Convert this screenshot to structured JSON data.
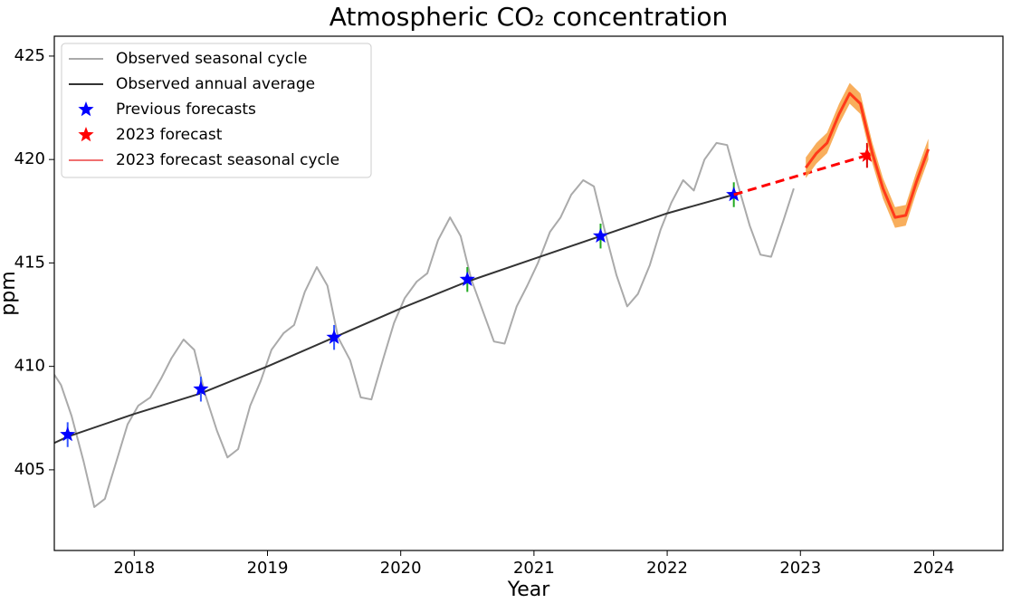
{
  "chart_data": {
    "type": "line",
    "title": "Atmospheric CO₂ concentration",
    "xlabel": "Year",
    "ylabel": "ppm",
    "xlim": [
      2017.4,
      2024.52
    ],
    "ylim": [
      401.1,
      425.96
    ],
    "xticks": [
      2018,
      2019,
      2020,
      2021,
      2022,
      2023,
      2024
    ],
    "yticks": [
      405,
      410,
      415,
      420,
      425
    ],
    "legend": "upper left",
    "series": [
      {
        "name": "Observed seasonal cycle",
        "kind": "line",
        "color": "#aaaaaa",
        "x": [
          2017.4,
          2017.45,
          2017.53,
          2017.62,
          2017.7,
          2017.78,
          2017.87,
          2017.95,
          2018.03,
          2018.12,
          2018.2,
          2018.28,
          2018.37,
          2018.45,
          2018.53,
          2018.62,
          2018.7,
          2018.78,
          2018.87,
          2018.95,
          2019.03,
          2019.12,
          2019.2,
          2019.28,
          2019.37,
          2019.45,
          2019.53,
          2019.62,
          2019.7,
          2019.78,
          2019.87,
          2019.95,
          2020.03,
          2020.12,
          2020.2,
          2020.28,
          2020.37,
          2020.45,
          2020.53,
          2020.62,
          2020.7,
          2020.78,
          2020.87,
          2020.95,
          2021.03,
          2021.12,
          2021.2,
          2021.28,
          2021.37,
          2021.45,
          2021.53,
          2021.62,
          2021.7,
          2021.78,
          2021.87,
          2021.95,
          2022.03,
          2022.12,
          2022.2,
          2022.28,
          2022.37,
          2022.45,
          2022.53,
          2022.62,
          2022.7,
          2022.78,
          2022.87,
          2022.95
        ],
        "values": [
          409.6,
          409.1,
          407.6,
          405.4,
          403.2,
          403.6,
          405.5,
          407.2,
          408.1,
          408.5,
          409.4,
          410.4,
          411.3,
          410.8,
          408.7,
          406.9,
          405.6,
          406.0,
          408.1,
          409.3,
          410.8,
          411.6,
          412.0,
          413.6,
          414.8,
          413.9,
          411.4,
          410.3,
          408.5,
          408.4,
          410.4,
          412.1,
          413.3,
          414.1,
          414.5,
          416.1,
          417.2,
          416.3,
          414.2,
          412.6,
          411.2,
          411.1,
          412.9,
          413.9,
          415.0,
          416.5,
          417.2,
          418.3,
          419.0,
          418.7,
          416.6,
          414.4,
          412.9,
          413.5,
          414.9,
          416.6,
          417.9,
          419.0,
          418.5,
          420.0,
          420.8,
          420.7,
          418.8,
          416.8,
          415.4,
          415.3,
          417.0,
          418.6
        ]
      },
      {
        "name": "Observed annual average",
        "kind": "line",
        "color": "#333333",
        "x": [
          2017.4,
          2017.5,
          2018.0,
          2018.5,
          2019.0,
          2019.5,
          2020.0,
          2020.5,
          2021.0,
          2021.5,
          2022.0,
          2022.5
        ],
        "values": [
          406.3,
          406.6,
          407.7,
          408.7,
          410.0,
          411.4,
          412.8,
          414.1,
          415.2,
          416.3,
          417.4,
          418.3
        ]
      },
      {
        "name": "Previous forecasts",
        "kind": "star",
        "color": "#0000ff",
        "x": [
          2017.5,
          2018.5,
          2019.5,
          2020.5,
          2021.5,
          2022.5
        ],
        "values": [
          406.7,
          408.9,
          411.4,
          414.2,
          416.3,
          418.3
        ],
        "errors": [
          0.6,
          0.6,
          0.6,
          0.6,
          0.6,
          0.6
        ],
        "error_colors": [
          "#3355ff",
          "#3355ff",
          "#3355ff",
          "#22aa22",
          "#22aa22",
          "#22aa22"
        ]
      },
      {
        "name": "2023 forecast",
        "kind": "star",
        "color": "#ff0000",
        "x": [
          2023.5
        ],
        "values": [
          420.2
        ],
        "errors": [
          0.6
        ],
        "error_colors": [
          "#dd0000"
        ],
        "link_x": [
          2022.5,
          2023.5
        ],
        "link_values": [
          418.3,
          420.2
        ]
      },
      {
        "name": "2023 forecast seasonal cycle",
        "kind": "line",
        "color": "#ff3a1a",
        "legend_color": "#f07070",
        "band_color": "#f7a040",
        "x": [
          2023.04,
          2023.12,
          2023.2,
          2023.29,
          2023.37,
          2023.45,
          2023.54,
          2023.62,
          2023.71,
          2023.79,
          2023.87,
          2023.96
        ],
        "values": [
          419.6,
          420.3,
          420.8,
          422.2,
          423.2,
          422.7,
          420.3,
          418.6,
          417.2,
          417.3,
          418.9,
          420.5
        ],
        "lower": [
          419.1,
          419.8,
          420.3,
          421.7,
          422.7,
          422.2,
          419.8,
          418.1,
          416.7,
          416.8,
          418.4,
          420.0
        ],
        "upper": [
          420.1,
          420.8,
          421.3,
          422.7,
          423.7,
          423.2,
          420.8,
          419.1,
          417.7,
          417.8,
          419.4,
          421.0
        ]
      }
    ]
  }
}
